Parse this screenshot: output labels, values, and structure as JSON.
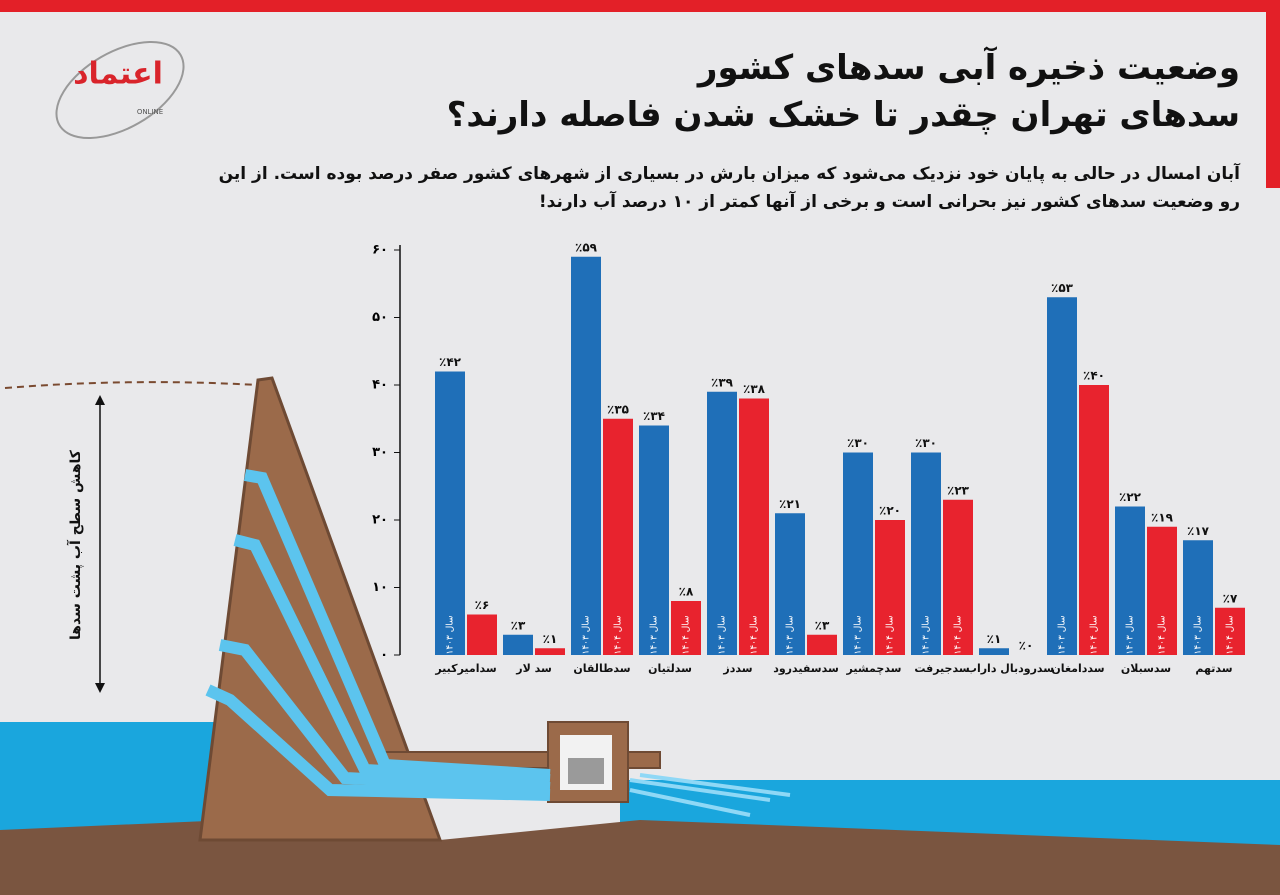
{
  "header": {
    "logo": "اعتماد",
    "logo_sub": "ONLINE",
    "title_line1": "وضعیت ذخیره آبی سدهای کشور",
    "title_line2": "سدهای تهران چقدر تا خشک شدن فاصله دارند؟",
    "subtitle": "آبان امسال در حالی به پایان خود نزدیک می‌شود که میزان بارش در بسیاری از شهرهای کشور صفر درصد بوده است. از این رو وضعیت سدهای کشور نیز بحرانی است و برخی از آنها کمتر از ۱۰ درصد آب دارند!"
  },
  "illustration": {
    "label": "کاهش سطح آب پشت سدها"
  },
  "chart_data": {
    "type": "bar",
    "categories": [
      "سدامیرکبیر",
      "سد لار",
      "سدطالقان",
      "سدلتیان",
      "سددز",
      "سدسفیدرود",
      "سدچمشیر",
      "سدجیرفت",
      "سدرودبال داراب",
      "سددامغان",
      "سدسبلان",
      "سدتهم"
    ],
    "series": [
      {
        "name": "سال ۱۴۰۳",
        "color": "#1f6fb8",
        "values": [
          42,
          3,
          59,
          34,
          39,
          21,
          30,
          30,
          1,
          53,
          22,
          17
        ],
        "value_labels": [
          "٪۴۲",
          "٪۳",
          "٪۵۹",
          "٪۳۴",
          "٪۳۹",
          "٪۲۱",
          "٪۳۰",
          "٪۳۰",
          "٪۱",
          "٪۵۳",
          "٪۲۲",
          "٪۱۷"
        ]
      },
      {
        "name": "سال ۱۴۰۴",
        "color": "#e8232e",
        "values": [
          6,
          1,
          35,
          8,
          38,
          3,
          20,
          23,
          0,
          40,
          19,
          7
        ],
        "value_labels": [
          "٪۶",
          "٪۱",
          "٪۳۵",
          "٪۸",
          "٪۳۸",
          "٪۳",
          "٪۲۰",
          "٪۲۳",
          "٪۰",
          "٪۴۰",
          "٪۱۹",
          "٪۷"
        ]
      }
    ],
    "ylim": [
      0,
      60
    ],
    "yticks": [
      {
        "value": 0,
        "label": "۰"
      },
      {
        "value": 10,
        "label": "۱۰"
      },
      {
        "value": 20,
        "label": "۲۰"
      },
      {
        "value": 30,
        "label": "۳۰"
      },
      {
        "value": 40,
        "label": "۴۰"
      },
      {
        "value": 50,
        "label": "۵۰"
      },
      {
        "value": 60,
        "label": "۶۰"
      }
    ]
  }
}
